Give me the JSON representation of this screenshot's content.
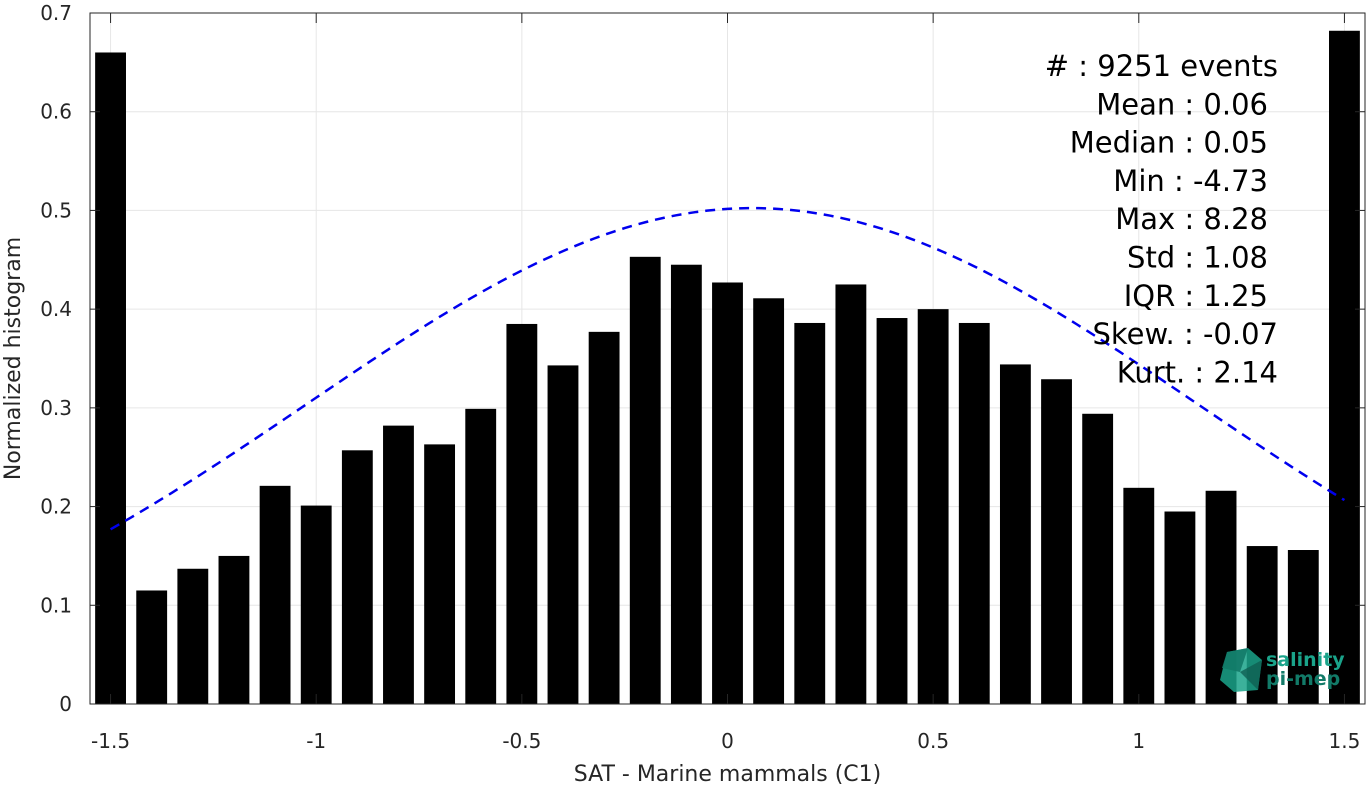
{
  "chart_data": {
    "type": "bar",
    "xlabel": "SAT - Marine mammals (C1)",
    "ylabel": "Normalized histogram",
    "xlim": [
      -1.55,
      1.55
    ],
    "ylim": [
      0,
      0.7
    ],
    "xticks": [
      -1.5,
      -1,
      -0.5,
      0,
      0.5,
      1,
      1.5
    ],
    "xtick_labels": [
      "-1.5",
      "-1",
      "-0.5",
      "0",
      "0.5",
      "1",
      "1.5"
    ],
    "yticks": [
      0,
      0.1,
      0.2,
      0.3,
      0.4,
      0.5,
      0.6,
      0.7
    ],
    "ytick_labels": [
      "0",
      "0.1",
      "0.2",
      "0.3",
      "0.4",
      "0.5",
      "0.6",
      "0.7"
    ],
    "grid": true,
    "bar_color": "#000000",
    "bar_width": 0.075,
    "series": [
      {
        "x": [
          -1.5,
          -1.4,
          -1.3,
          -1.2,
          -1.1,
          -1.0,
          -0.9,
          -0.8,
          -0.7,
          -0.6,
          -0.5,
          -0.4,
          -0.3,
          -0.2,
          -0.1,
          0.0,
          0.1,
          0.2,
          0.3,
          0.4,
          0.5,
          0.6,
          0.7,
          0.8,
          0.9,
          1.0,
          1.1,
          1.2,
          1.3,
          1.4,
          1.5
        ],
        "values": [
          0.66,
          0.115,
          0.137,
          0.15,
          0.221,
          0.201,
          0.257,
          0.282,
          0.263,
          0.299,
          0.385,
          0.343,
          0.377,
          0.453,
          0.445,
          0.427,
          0.411,
          0.386,
          0.425,
          0.391,
          0.4,
          0.386,
          0.344,
          0.329,
          0.294,
          0.219,
          0.195,
          0.216,
          0.16,
          0.156,
          0.682
        ]
      }
    ],
    "fit_curve": {
      "style": "dashed",
      "color": "#0000ee",
      "distribution": "normal",
      "mean": 0.06,
      "std": 1.08,
      "x_range": [
        -1.5,
        1.5
      ]
    },
    "annotations": [
      "#  : 9251 events",
      "Mean : 0.06",
      "Median : 0.05",
      "Min : -4.73",
      "Max : 8.28",
      "Std : 1.08",
      "IQR : 1.25",
      "Skew. : -0.07",
      "Kurt. : 2.14"
    ]
  },
  "logo": {
    "line1": "salinity",
    "line2": "pi-mep",
    "color": "#1aa38a"
  }
}
